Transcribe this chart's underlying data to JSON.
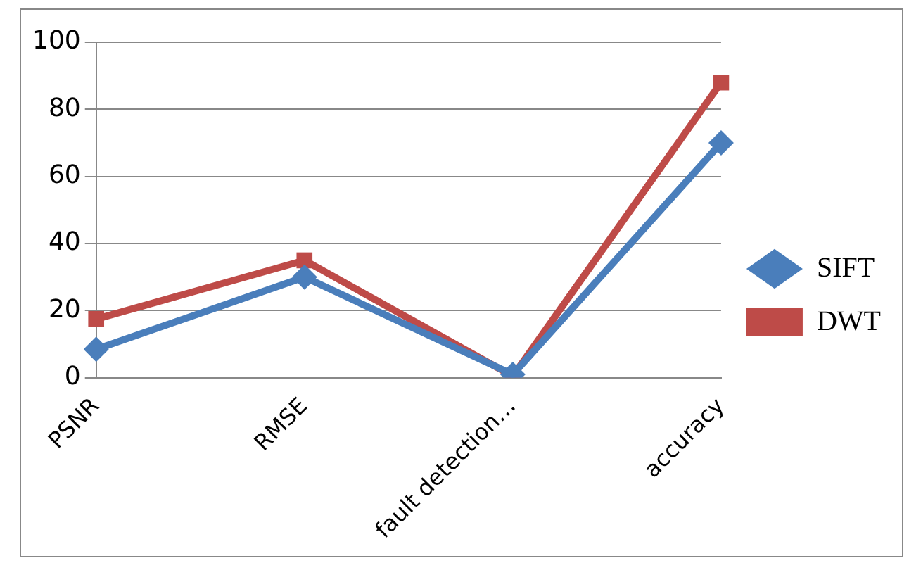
{
  "chart_data": {
    "type": "line",
    "categories": [
      "PSNR",
      "RMSE",
      "fault detection…",
      "accuracy"
    ],
    "series": [
      {
        "name": "SIFT",
        "color": "#4a7ebb",
        "marker": "diamond",
        "values": [
          8.5,
          30,
          1,
          70
        ]
      },
      {
        "name": "DWT",
        "color": "#be4b48",
        "marker": "square",
        "values": [
          17.5,
          35,
          0.5,
          88
        ]
      }
    ],
    "ylim": [
      0,
      100
    ],
    "yticks": [
      0,
      20,
      40,
      60,
      80,
      100
    ],
    "grid": "y",
    "legend": "right"
  }
}
